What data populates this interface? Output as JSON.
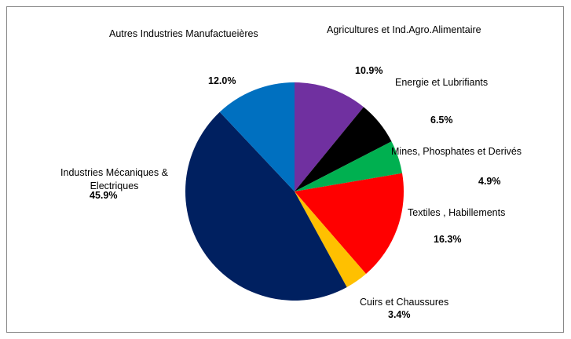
{
  "chart_data": {
    "type": "pie",
    "title": "",
    "legend": "none",
    "slices": [
      {
        "label": "Agricultures et Ind.Agro.Alimentaire",
        "value": 10.9,
        "value_label": "10.9%",
        "color": "#7030A0"
      },
      {
        "label": "Energie et Lubrifiants",
        "value": 6.5,
        "value_label": "6.5%",
        "color": "#000000"
      },
      {
        "label": "Mines, Phosphates et Derivés",
        "value": 4.9,
        "value_label": "4.9%",
        "color": "#00B050"
      },
      {
        "label": "Textiles , Habillements",
        "value": 16.3,
        "value_label": "16.3%",
        "color": "#FF0000"
      },
      {
        "label": "Cuirs  et Chaussures",
        "value": 3.4,
        "value_label": "3.4%",
        "color": "#FFC000"
      },
      {
        "label": "Industries Mécaniques & Electriques",
        "value": 45.9,
        "value_label": "45.9%",
        "color": "#002060"
      },
      {
        "label": "Autres Industries Manufactueières",
        "value": 12.0,
        "value_label": "12.0%",
        "color": "#0070C0"
      }
    ]
  }
}
